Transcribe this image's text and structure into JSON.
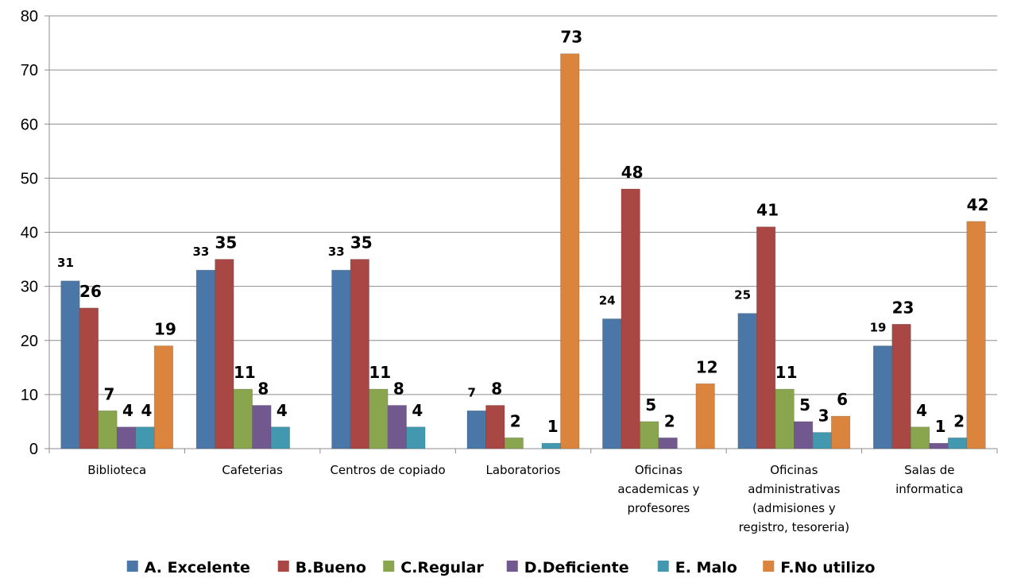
{
  "chart_data": {
    "type": "bar",
    "title": "",
    "xlabel": "",
    "ylabel": "",
    "ylim": [
      0,
      80
    ],
    "yticks": [
      "0",
      "10",
      "20",
      "30",
      "40",
      "50",
      "60",
      "70",
      "80"
    ],
    "grid": true,
    "legend_position": "bottom",
    "categories": [
      [
        "Biblioteca"
      ],
      [
        "Cafeterias"
      ],
      [
        "Centros de copiado"
      ],
      [
        "Laboratorios"
      ],
      [
        "Oficinas",
        "academicas y",
        "profesores"
      ],
      [
        "Oficinas",
        "administrativas",
        "(admisiones y",
        "registro, tesoreria)"
      ],
      [
        "Salas de",
        "informatica"
      ]
    ],
    "series": [
      {
        "name": "A. Excelente",
        "color": "#4A76A8",
        "values": [
          31,
          33,
          33,
          7,
          24,
          25,
          19
        ]
      },
      {
        "name": "B.Bueno",
        "color": "#A84744",
        "values": [
          26,
          35,
          35,
          8,
          48,
          41,
          23
        ]
      },
      {
        "name": "C.Regular",
        "color": "#89A54E",
        "values": [
          7,
          11,
          11,
          2,
          5,
          11,
          4
        ]
      },
      {
        "name": "D.Deficiente",
        "color": "#71588F",
        "values": [
          4,
          8,
          8,
          null,
          2,
          5,
          1
        ]
      },
      {
        "name": "E. Malo",
        "color": "#4198AF",
        "values": [
          4,
          4,
          4,
          1,
          null,
          3,
          2
        ]
      },
      {
        "name": "F.No utilizo",
        "color": "#DB843D",
        "values": [
          19,
          null,
          null,
          73,
          12,
          6,
          42
        ]
      }
    ]
  }
}
